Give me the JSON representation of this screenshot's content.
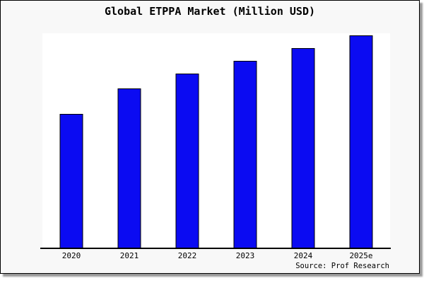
{
  "page": {
    "background_color": "#ffffff",
    "frame_background": "#f8f8f8",
    "frame_border_color": "#000000",
    "shadow_color": "#999999"
  },
  "chart_data": {
    "type": "bar",
    "title": "Global ETPPA Market (Million USD)",
    "categories": [
      "2020",
      "2021",
      "2022",
      "2023",
      "2024",
      "2025e"
    ],
    "values": [
      63,
      75,
      82,
      88,
      94,
      100
    ],
    "xlabel": "",
    "ylabel": "",
    "ylim": [
      0,
      100
    ],
    "y_axis_visible": false,
    "grid": false,
    "legend": false,
    "bar_color": "#0b0bf2",
    "bar_border_color": "#000000",
    "plot_background": "#ffffff"
  },
  "source": {
    "label": "Source: Prof Research"
  }
}
